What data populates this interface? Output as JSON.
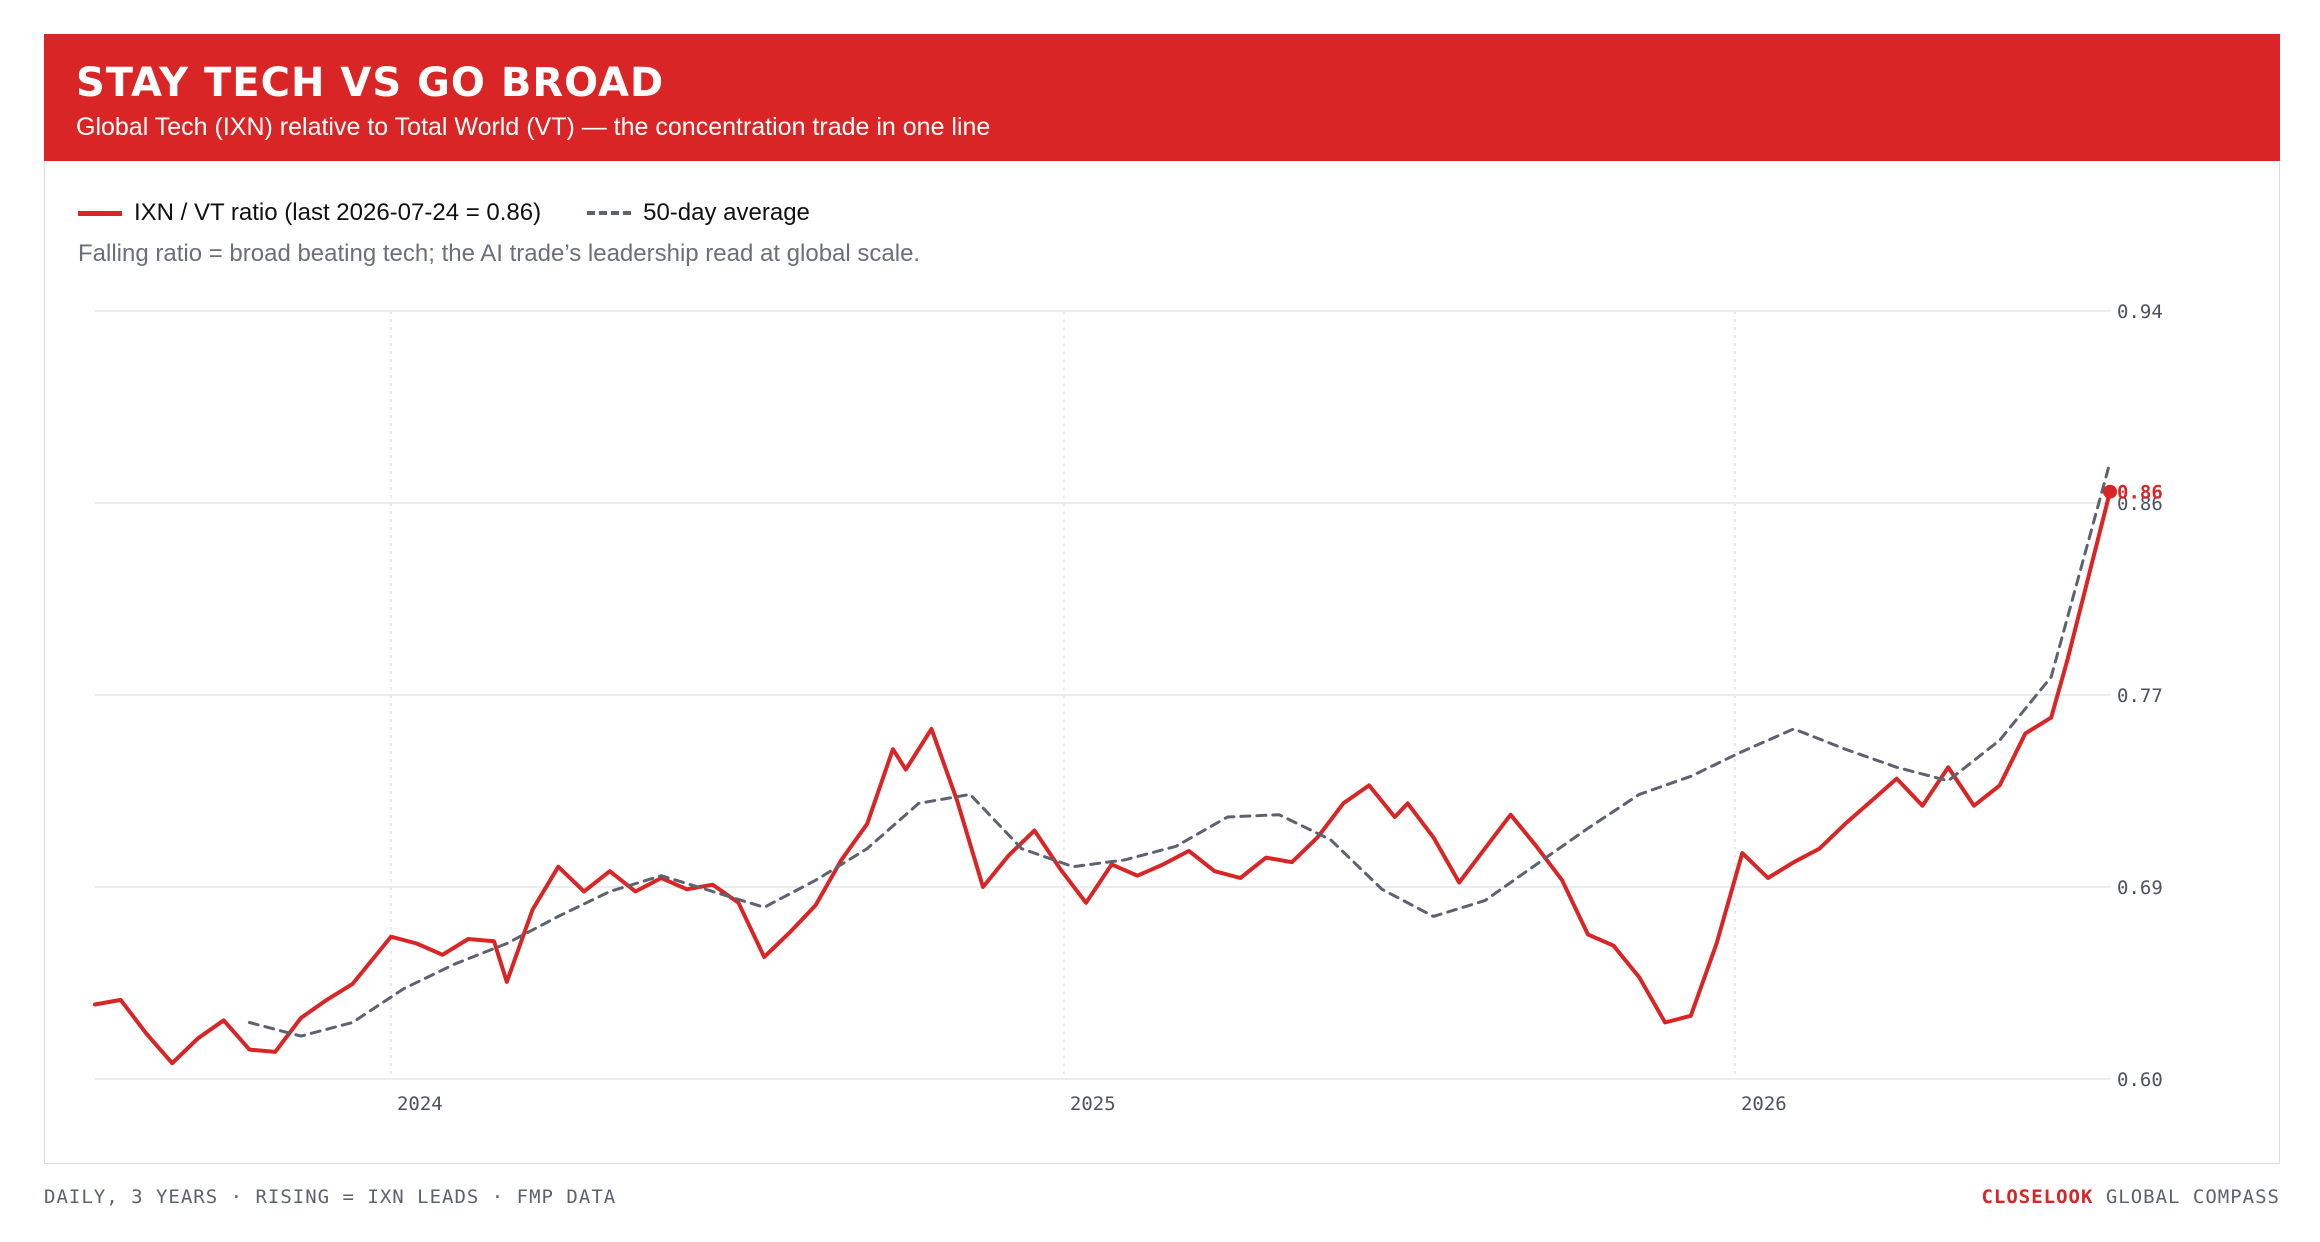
{
  "header": {
    "title": "STAY TECH VS GO BROAD",
    "subtitle": "Global Tech (IXN) relative to Total World (VT) — the concentration trade in one line"
  },
  "legend": {
    "ratio_label": "IXN / VT ratio (last 2026-07-24 = 0.86)",
    "avg_label": "50-day average"
  },
  "note": "Falling ratio = broad beating tech; the AI trade’s leadership read at global scale.",
  "footer": {
    "left": "DAILY, 3 YEARS · RISING = IXN LEADS · FMP DATA",
    "brand": "CLOSELOOK",
    "right": " GLOBAL COMPASS"
  },
  "colors": {
    "ratio": "#d92525",
    "average": "#5d6270",
    "grid": "#e3e5ea"
  },
  "chart_data": {
    "type": "line",
    "title": "STAY TECH VS GO BROAD",
    "y_ticks": [
      "0.94",
      "0.86",
      "0.77",
      "0.69",
      "0.60"
    ],
    "ylim": [
      0.6,
      0.94
    ],
    "x_ticks": [
      "2024",
      "2025",
      "2026"
    ],
    "x_range": [
      "2023-07-24",
      "2026-07-24"
    ],
    "last_value_label": "0.86",
    "grid": true,
    "legend_position": "top-left",
    "series": [
      {
        "name": "IXN / VT ratio",
        "style": "solid",
        "points": [
          [
            "2023-07-24",
            0.633
          ],
          [
            "2023-08-07",
            0.635
          ],
          [
            "2023-08-21",
            0.62
          ],
          [
            "2023-09-04",
            0.607
          ],
          [
            "2023-09-18",
            0.618
          ],
          [
            "2023-10-02",
            0.626
          ],
          [
            "2023-10-16",
            0.613
          ],
          [
            "2023-10-30",
            0.612
          ],
          [
            "2023-11-13",
            0.627
          ],
          [
            "2023-11-27",
            0.635
          ],
          [
            "2023-12-11",
            0.642
          ],
          [
            "2024-01-01",
            0.663
          ],
          [
            "2024-01-15",
            0.66
          ],
          [
            "2024-01-29",
            0.655
          ],
          [
            "2024-02-12",
            0.662
          ],
          [
            "2024-02-26",
            0.661
          ],
          [
            "2024-03-04",
            0.643
          ],
          [
            "2024-03-18",
            0.675
          ],
          [
            "2024-04-01",
            0.694
          ],
          [
            "2024-04-15",
            0.683
          ],
          [
            "2024-04-29",
            0.692
          ],
          [
            "2024-05-13",
            0.683
          ],
          [
            "2024-05-27",
            0.689
          ],
          [
            "2024-06-10",
            0.684
          ],
          [
            "2024-06-24",
            0.686
          ],
          [
            "2024-07-08",
            0.678
          ],
          [
            "2024-07-22",
            0.654
          ],
          [
            "2024-08-05",
            0.665
          ],
          [
            "2024-08-19",
            0.677
          ],
          [
            "2024-09-02",
            0.697
          ],
          [
            "2024-09-16",
            0.713
          ],
          [
            "2024-09-30",
            0.746
          ],
          [
            "2024-10-07",
            0.737
          ],
          [
            "2024-10-21",
            0.755
          ],
          [
            "2024-11-04",
            0.723
          ],
          [
            "2024-11-18",
            0.685
          ],
          [
            "2024-12-02",
            0.699
          ],
          [
            "2024-12-16",
            0.71
          ],
          [
            "2024-12-30",
            0.693
          ],
          [
            "2025-01-13",
            0.678
          ],
          [
            "2025-01-27",
            0.695
          ],
          [
            "2025-02-10",
            0.69
          ],
          [
            "2025-02-24",
            0.695
          ],
          [
            "2025-03-10",
            0.701
          ],
          [
            "2025-03-24",
            0.692
          ],
          [
            "2025-04-07",
            0.689
          ],
          [
            "2025-04-21",
            0.698
          ],
          [
            "2025-05-05",
            0.696
          ],
          [
            "2025-05-19",
            0.707
          ],
          [
            "2025-06-02",
            0.722
          ],
          [
            "2025-06-16",
            0.73
          ],
          [
            "2025-06-30",
            0.716
          ],
          [
            "2025-07-07",
            0.722
          ],
          [
            "2025-07-21",
            0.707
          ],
          [
            "2025-08-04",
            0.687
          ],
          [
            "2025-08-18",
            0.702
          ],
          [
            "2025-09-01",
            0.717
          ],
          [
            "2025-09-15",
            0.703
          ],
          [
            "2025-09-29",
            0.688
          ],
          [
            "2025-10-13",
            0.664
          ],
          [
            "2025-10-27",
            0.659
          ],
          [
            "2025-11-10",
            0.645
          ],
          [
            "2025-11-24",
            0.625
          ],
          [
            "2025-12-08",
            0.628
          ],
          [
            "2025-12-22",
            0.66
          ],
          [
            "2026-01-05",
            0.7
          ],
          [
            "2026-01-19",
            0.689
          ],
          [
            "2026-02-02",
            0.696
          ],
          [
            "2026-02-16",
            0.702
          ],
          [
            "2026-03-02",
            0.713
          ],
          [
            "2026-03-16",
            0.723
          ],
          [
            "2026-03-30",
            0.733
          ],
          [
            "2026-04-13",
            0.721
          ],
          [
            "2026-04-27",
            0.738
          ],
          [
            "2026-05-11",
            0.721
          ],
          [
            "2026-05-25",
            0.73
          ],
          [
            "2026-06-08",
            0.753
          ],
          [
            "2026-06-22",
            0.76
          ],
          [
            "2026-07-01",
            0.786
          ],
          [
            "2026-07-24",
            0.86
          ]
        ]
      },
      {
        "name": "50-day average",
        "style": "dashed",
        "points": [
          [
            "2023-10-16",
            0.625
          ],
          [
            "2023-11-13",
            0.619
          ],
          [
            "2023-12-11",
            0.625
          ],
          [
            "2024-01-08",
            0.64
          ],
          [
            "2024-02-05",
            0.651
          ],
          [
            "2024-03-04",
            0.66
          ],
          [
            "2024-04-01",
            0.672
          ],
          [
            "2024-04-29",
            0.683
          ],
          [
            "2024-05-27",
            0.69
          ],
          [
            "2024-06-24",
            0.683
          ],
          [
            "2024-07-22",
            0.676
          ],
          [
            "2024-08-19",
            0.688
          ],
          [
            "2024-09-16",
            0.702
          ],
          [
            "2024-10-14",
            0.722
          ],
          [
            "2024-11-11",
            0.726
          ],
          [
            "2024-12-09",
            0.702
          ],
          [
            "2025-01-06",
            0.694
          ],
          [
            "2025-02-03",
            0.697
          ],
          [
            "2025-03-03",
            0.703
          ],
          [
            "2025-03-31",
            0.716
          ],
          [
            "2025-04-28",
            0.717
          ],
          [
            "2025-05-26",
            0.706
          ],
          [
            "2025-06-23",
            0.684
          ],
          [
            "2025-07-21",
            0.672
          ],
          [
            "2025-08-18",
            0.679
          ],
          [
            "2025-09-15",
            0.695
          ],
          [
            "2025-10-13",
            0.711
          ],
          [
            "2025-11-10",
            0.726
          ],
          [
            "2025-12-08",
            0.734
          ],
          [
            "2026-01-05",
            0.745
          ],
          [
            "2026-02-02",
            0.755
          ],
          [
            "2026-03-02",
            0.746
          ],
          [
            "2026-03-30",
            0.738
          ],
          [
            "2026-04-27",
            0.732
          ],
          [
            "2026-05-25",
            0.75
          ],
          [
            "2026-06-22",
            0.778
          ],
          [
            "2026-07-24",
            0.873
          ]
        ]
      }
    ]
  }
}
